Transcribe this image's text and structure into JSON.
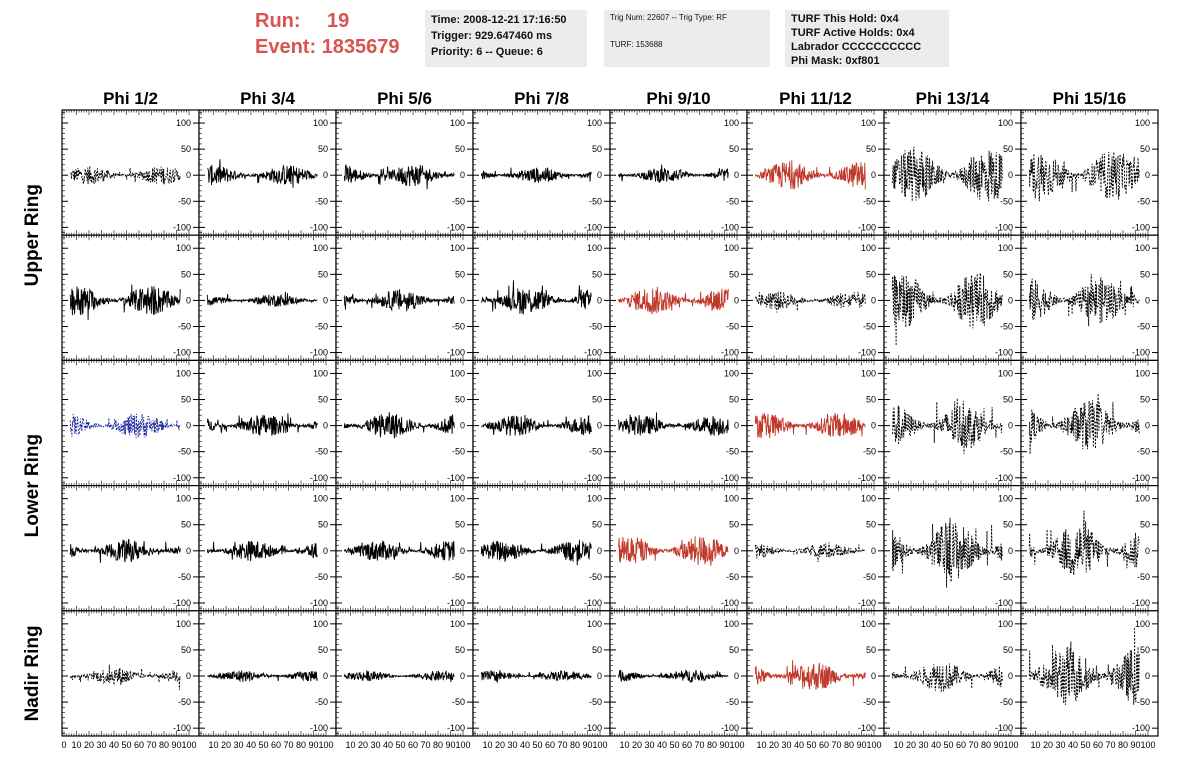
{
  "header": {
    "run_label": "Run:",
    "run_value": "19",
    "event_label": "Event:",
    "event_value": "1835679",
    "time": "Time: 2008-12-21 17:16:50",
    "trigger": "Trigger: 929.647460 ms",
    "priority": "Priority: 6 -- Queue: 6",
    "trig_num": "Trig Num: 22607 -- Trig Type: RF",
    "turf": "TURF: 153688",
    "turf_hold": "TURF This Hold: 0x4",
    "turf_active": "TURF Active Holds: 0x4",
    "labrador": "Labrador CCCCCCCCCC",
    "phi_mask": "Phi Mask: 0xf801"
  },
  "chart_data": {
    "type": "line",
    "columns": [
      "Phi 1/2",
      "Phi 3/4",
      "Phi 5/6",
      "Phi 7/8",
      "Phi 9/10",
      "Phi 11/12",
      "Phi 13/14",
      "Phi 15/16"
    ],
    "rows": [
      "Upper Ring",
      "Lower Ring",
      "Nadir Ring"
    ],
    "xlim": [
      0,
      100
    ],
    "ylim": [
      -115,
      125
    ],
    "yticks": [
      -100,
      -50,
      0,
      50,
      100
    ],
    "xticks": [
      0,
      10,
      20,
      30,
      40,
      50,
      60,
      70,
      80,
      90,
      100
    ],
    "colors": {
      "default": "#000000",
      "red": "#c0392b",
      "blue": "#1f2a9e"
    },
    "panels": [
      [
        {
          "amp": 18,
          "style": "dashed",
          "color": "default"
        },
        {
          "amp": 20,
          "style": "solid",
          "color": "default"
        },
        {
          "amp": 22,
          "style": "solid",
          "color": "default"
        },
        {
          "amp": 15,
          "style": "solid",
          "color": "default"
        },
        {
          "amp": 15,
          "style": "solid",
          "color": "default"
        },
        {
          "amp": 28,
          "style": "solid",
          "color": "red"
        },
        {
          "amp": 55,
          "style": "dashed",
          "color": "default"
        },
        {
          "amp": 50,
          "style": "dashed",
          "color": "default"
        }
      ],
      [
        {
          "amp": 30,
          "style": "solid",
          "color": "default"
        },
        {
          "amp": 12,
          "style": "solid",
          "color": "default"
        },
        {
          "amp": 22,
          "style": "solid",
          "color": "default"
        },
        {
          "amp": 28,
          "style": "solid",
          "color": "default"
        },
        {
          "amp": 28,
          "style": "solid",
          "color": "red"
        },
        {
          "amp": 18,
          "style": "dashed",
          "color": "default"
        },
        {
          "amp": 55,
          "style": "dashed",
          "color": "default"
        },
        {
          "amp": 45,
          "style": "dashed",
          "color": "default"
        }
      ],
      [
        {
          "amp": 25,
          "style": "dashed",
          "color": "blue"
        },
        {
          "amp": 22,
          "style": "solid",
          "color": "default"
        },
        {
          "amp": 26,
          "style": "solid",
          "color": "default"
        },
        {
          "amp": 20,
          "style": "solid",
          "color": "default"
        },
        {
          "amp": 20,
          "style": "solid",
          "color": "default"
        },
        {
          "amp": 25,
          "style": "solid",
          "color": "red"
        },
        {
          "amp": 45,
          "style": "dashed",
          "color": "default"
        },
        {
          "amp": 50,
          "style": "dashed",
          "color": "default"
        }
      ],
      [
        {
          "amp": 22,
          "style": "solid",
          "color": "default"
        },
        {
          "amp": 20,
          "style": "solid",
          "color": "default"
        },
        {
          "amp": 20,
          "style": "solid",
          "color": "default"
        },
        {
          "amp": 22,
          "style": "solid",
          "color": "default"
        },
        {
          "amp": 30,
          "style": "solid",
          "color": "red"
        },
        {
          "amp": 15,
          "style": "dashed",
          "color": "default"
        },
        {
          "amp": 60,
          "style": "dashed",
          "color": "default"
        },
        {
          "amp": 55,
          "style": "dashed",
          "color": "default"
        }
      ],
      [
        {
          "amp": 18,
          "style": "dashed",
          "color": "default"
        },
        {
          "amp": 12,
          "style": "solid",
          "color": "default"
        },
        {
          "amp": 10,
          "style": "solid",
          "color": "default"
        },
        {
          "amp": 10,
          "style": "solid",
          "color": "default"
        },
        {
          "amp": 12,
          "style": "solid",
          "color": "default"
        },
        {
          "amp": 28,
          "style": "solid",
          "color": "red"
        },
        {
          "amp": 30,
          "style": "dashed",
          "color": "default"
        },
        {
          "amp": 60,
          "style": "dashed",
          "color": "default"
        }
      ]
    ]
  }
}
